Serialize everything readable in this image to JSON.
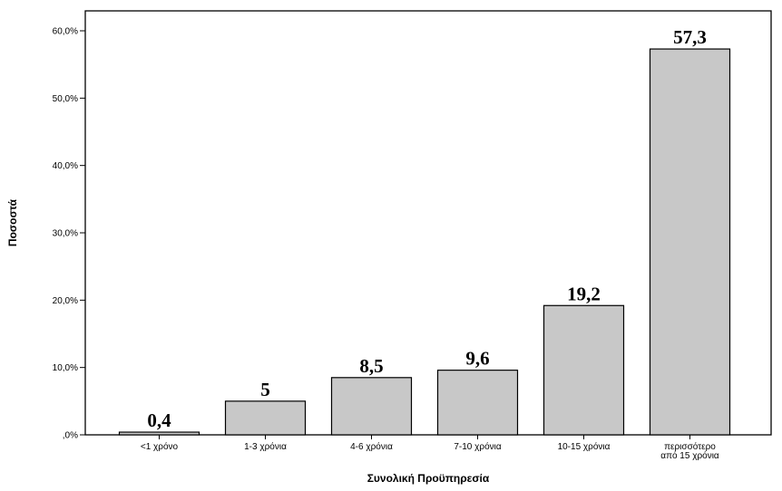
{
  "chart_data": {
    "type": "bar",
    "title": "",
    "xlabel": "Συνολική Προϋπηρεσία",
    "ylabel": "Ποσοστά",
    "categories": [
      [
        "<1 χρόνο"
      ],
      [
        "1-3 χρόνια"
      ],
      [
        "4-6 χρόνια"
      ],
      [
        "7-10 χρόνια"
      ],
      [
        "10-15 χρόνια"
      ],
      [
        "περισσότερο",
        "από 15 χρόνια"
      ]
    ],
    "values": [
      0.4,
      5,
      8.5,
      9.6,
      19.2,
      57.3
    ],
    "data_labels": [
      "0,4",
      "5",
      "8,5",
      "9,6",
      "19,2",
      "57,3"
    ],
    "y_ticks": [
      0,
      10,
      20,
      30,
      40,
      50,
      60
    ],
    "y_tick_labels": [
      ",0%",
      "10,0%",
      "20,0%",
      "30,0%",
      "40,0%",
      "50,0%",
      "60,0%"
    ],
    "ylim": [
      0,
      60
    ],
    "grid": false,
    "colors": {
      "bar_fill": "#c8c8c8",
      "bar_stroke": "#000000"
    }
  }
}
